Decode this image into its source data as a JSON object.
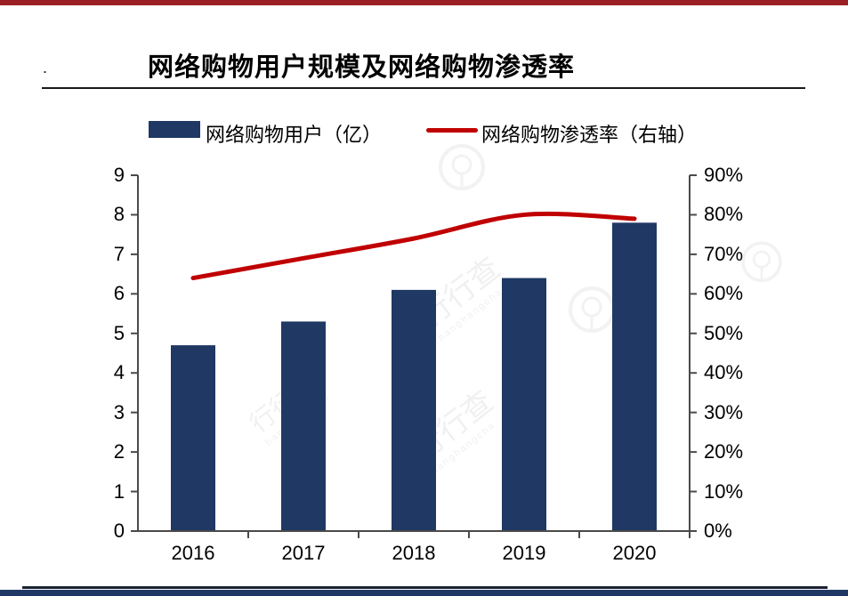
{
  "page": {
    "stray_mark": ".",
    "watermark_text": "行行查",
    "watermark_subtext": "hanghangcha"
  },
  "header": {
    "title": "网络购物用户规模及网络购物渗透率"
  },
  "chart_data": {
    "type": "bar",
    "title": "网络购物用户规模及网络购物渗透率",
    "categories": [
      "2016",
      "2017",
      "2018",
      "2019",
      "2020"
    ],
    "series": [
      {
        "name": "网络购物用户（亿）",
        "type": "bar",
        "axis": "left",
        "color": "#1F3864",
        "values": [
          4.7,
          5.3,
          6.1,
          6.4,
          7.8
        ]
      },
      {
        "name": "网络购物渗透率（右轴）",
        "type": "line",
        "axis": "right",
        "color": "#C00000",
        "unit": "%",
        "values": [
          64,
          69,
          74,
          80,
          79
        ]
      }
    ],
    "left_axis": {
      "min": 0,
      "max": 9,
      "step": 1,
      "ticks": [
        "0",
        "1",
        "2",
        "3",
        "4",
        "5",
        "6",
        "7",
        "8",
        "9"
      ]
    },
    "right_axis": {
      "min": 0,
      "max": 90,
      "step": 10,
      "suffix": "%",
      "ticks": [
        "0%",
        "10%",
        "20%",
        "30%",
        "40%",
        "50%",
        "60%",
        "70%",
        "80%",
        "90%"
      ]
    },
    "legend_position": "top",
    "grid": false
  },
  "colors": {
    "bar": "#1F3864",
    "line": "#C00000",
    "axis": "#4a4a4a",
    "top_bar": "#9a2025",
    "bottom_bar": "#1F3864"
  }
}
